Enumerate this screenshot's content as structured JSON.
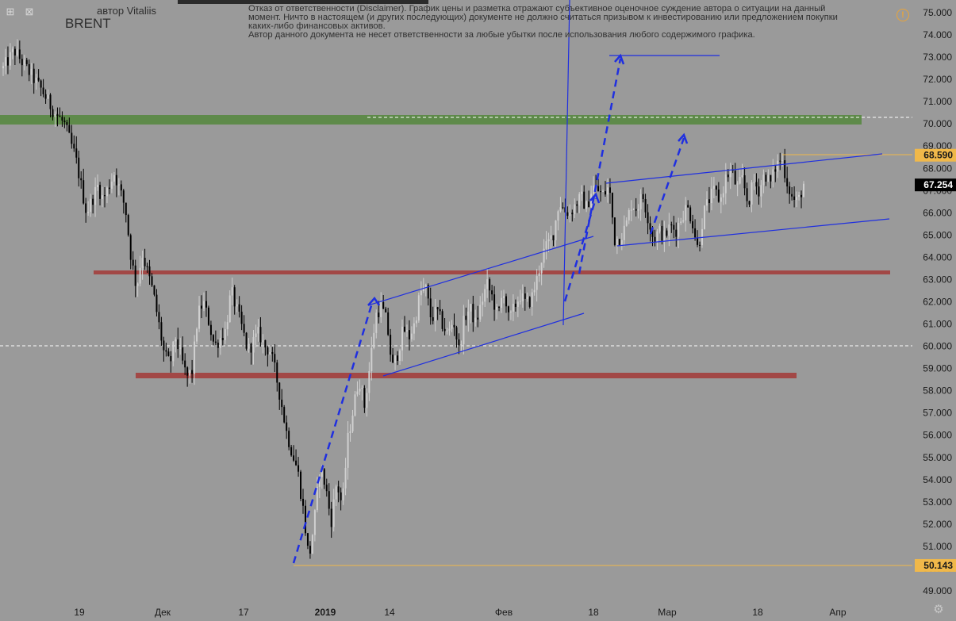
{
  "header": {
    "author": "автор Vitaliis",
    "symbol": "BRENT",
    "disclaimer_lines": [
      "Отказ от ответственности (Disclaimer). График цены и разметка отражают субъективное оценочное суждение автора о ситуации на данный",
      "момент. Ничто в настоящем (и других последующих) документе не должно считаться призывом к инвестированию или предложением покупки",
      "каких-либо финансовых активов.",
      "Автор данного документа не несет ответственности за любые убытки после использования любого содержимого графика."
    ]
  },
  "icons": {
    "top_left": [
      "expand-icon",
      "close-icon"
    ],
    "alert": "alert-icon",
    "settings": "gear-icon"
  },
  "colors": {
    "background": "#9a9a9a",
    "bull_candle": "#d0d0d0",
    "bear_candle": "#000000",
    "resistance_zone": "#5e8a4a",
    "support_zone": "#a24846",
    "channel": "#1f2fe0",
    "price_marker": "#f0b84a",
    "current_price_bg": "#000000"
  },
  "chart_data": {
    "type": "candlestick",
    "y_axis": {
      "range": [
        48.5,
        75.3
      ],
      "ticks": [
        "49.000",
        "50.000",
        "51.000",
        "52.000",
        "53.000",
        "54.000",
        "55.000",
        "56.000",
        "57.000",
        "58.000",
        "59.000",
        "60.000",
        "61.000",
        "62.000",
        "63.000",
        "64.000",
        "65.000",
        "66.000",
        "67.000",
        "68.000",
        "69.000",
        "70.000",
        "71.000",
        "72.000",
        "73.000",
        "74.000",
        "75.000"
      ]
    },
    "x_axis": {
      "labels": [
        "19",
        "Дек",
        "17",
        "2019",
        "14",
        "Фев",
        "18",
        "Мар",
        "18",
        "Апр"
      ],
      "label_bold": "2019"
    },
    "price_markers": [
      {
        "label": "68.590",
        "value": 68.59,
        "style": "highlight"
      },
      {
        "label": "67.254",
        "value": 67.254,
        "style": "current"
      },
      {
        "label": "50.143",
        "value": 50.143,
        "style": "highlight"
      }
    ],
    "zones": [
      {
        "kind": "resistance",
        "value_low": 69.95,
        "value_high": 70.35
      },
      {
        "kind": "support",
        "value_low": 63.15,
        "value_high": 63.35
      },
      {
        "kind": "support",
        "value_low": 58.6,
        "value_high": 58.85
      }
    ],
    "dashed_levels": [
      70.25,
      60.0
    ],
    "price_path": [
      [
        0,
        72.5
      ],
      [
        2,
        73.3
      ],
      [
        5,
        72.2
      ],
      [
        7,
        71.5
      ],
      [
        9,
        70.6
      ],
      [
        11,
        70.0
      ],
      [
        13,
        68.5
      ],
      [
        15,
        66.0
      ],
      [
        17,
        67.2
      ],
      [
        18,
        66.6
      ],
      [
        20,
        67.8
      ],
      [
        22,
        66.2
      ],
      [
        23,
        64.0
      ],
      [
        24,
        62.6
      ],
      [
        25,
        64.2
      ],
      [
        27,
        62.4
      ],
      [
        28,
        61.0
      ],
      [
        29,
        59.6
      ],
      [
        30,
        59.2
      ],
      [
        31,
        60.4
      ],
      [
        33,
        58.6
      ],
      [
        34,
        58.9
      ],
      [
        35,
        61.4
      ],
      [
        36,
        62.0
      ],
      [
        37,
        61.1
      ],
      [
        38,
        60.0
      ],
      [
        40,
        60.7
      ],
      [
        41,
        62.5
      ],
      [
        43,
        60.8
      ],
      [
        44,
        59.8
      ],
      [
        46,
        60.6
      ],
      [
        47,
        60.0
      ],
      [
        48,
        59.8
      ],
      [
        49,
        58.8
      ],
      [
        50,
        57.5
      ],
      [
        51,
        56.1
      ],
      [
        52,
        55.2
      ],
      [
        53,
        54.4
      ],
      [
        54,
        52.6
      ],
      [
        55,
        50.4
      ],
      [
        56,
        52.2
      ],
      [
        57,
        54.6
      ],
      [
        58,
        53.7
      ],
      [
        59,
        52.1
      ],
      [
        60,
        53.9
      ],
      [
        61,
        52.8
      ],
      [
        62,
        55.8
      ],
      [
        63,
        57.2
      ],
      [
        64,
        58.6
      ],
      [
        65,
        57.3
      ],
      [
        66,
        59.2
      ],
      [
        67,
        61.4
      ],
      [
        68,
        61.8
      ],
      [
        69,
        61.1
      ],
      [
        70,
        59.0
      ],
      [
        71,
        59.7
      ],
      [
        72,
        60.8
      ],
      [
        73,
        60.4
      ],
      [
        74,
        61.0
      ],
      [
        75,
        62.4
      ],
      [
        76,
        62.6
      ],
      [
        77,
        61.2
      ],
      [
        78,
        61.6
      ],
      [
        79,
        61.0
      ],
      [
        80,
        60.5
      ],
      [
        81,
        61.2
      ],
      [
        82,
        59.8
      ],
      [
        83,
        61.3
      ],
      [
        84,
        61.7
      ],
      [
        85,
        61.0
      ],
      [
        86,
        61.9
      ],
      [
        87,
        62.8
      ],
      [
        88,
        62.2
      ],
      [
        89,
        61.3
      ],
      [
        90,
        62.6
      ],
      [
        91,
        61.1
      ],
      [
        92,
        61.8
      ],
      [
        93,
        62.3
      ],
      [
        94,
        61.9
      ],
      [
        95,
        62.1
      ],
      [
        96,
        63.0
      ],
      [
        97,
        64.1
      ],
      [
        98,
        64.6
      ],
      [
        99,
        65.1
      ],
      [
        100,
        66.5
      ],
      [
        101,
        66.1
      ],
      [
        102,
        66.0
      ],
      [
        103,
        66.4
      ],
      [
        104,
        66.7
      ],
      [
        105,
        66.2
      ],
      [
        106,
        67.2
      ],
      [
        107,
        67.0
      ],
      [
        108,
        66.8
      ],
      [
        109,
        67.2
      ],
      [
        110,
        64.8
      ],
      [
        111,
        64.9
      ],
      [
        112,
        65.4
      ],
      [
        113,
        66.4
      ],
      [
        114,
        66.2
      ],
      [
        115,
        66.8
      ],
      [
        116,
        65.8
      ],
      [
        117,
        64.8
      ],
      [
        118,
        65.2
      ],
      [
        119,
        64.9
      ],
      [
        120,
        65.4
      ],
      [
        121,
        65.2
      ],
      [
        122,
        65.8
      ],
      [
        123,
        66.3
      ],
      [
        124,
        65.6
      ],
      [
        125,
        64.3
      ],
      [
        126,
        66.0
      ],
      [
        127,
        66.6
      ],
      [
        128,
        67.0
      ],
      [
        129,
        66.5
      ],
      [
        130,
        67.6
      ],
      [
        131,
        67.9
      ],
      [
        132,
        67.1
      ],
      [
        133,
        67.5
      ],
      [
        134,
        66.4
      ],
      [
        135,
        67.4
      ],
      [
        136,
        67.0
      ],
      [
        137,
        67.8
      ],
      [
        138,
        67.3
      ],
      [
        139,
        68.1
      ],
      [
        140,
        68.5
      ],
      [
        141,
        67.4
      ],
      [
        142,
        66.6
      ],
      [
        143,
        66.5
      ],
      [
        144,
        67.3
      ]
    ]
  }
}
